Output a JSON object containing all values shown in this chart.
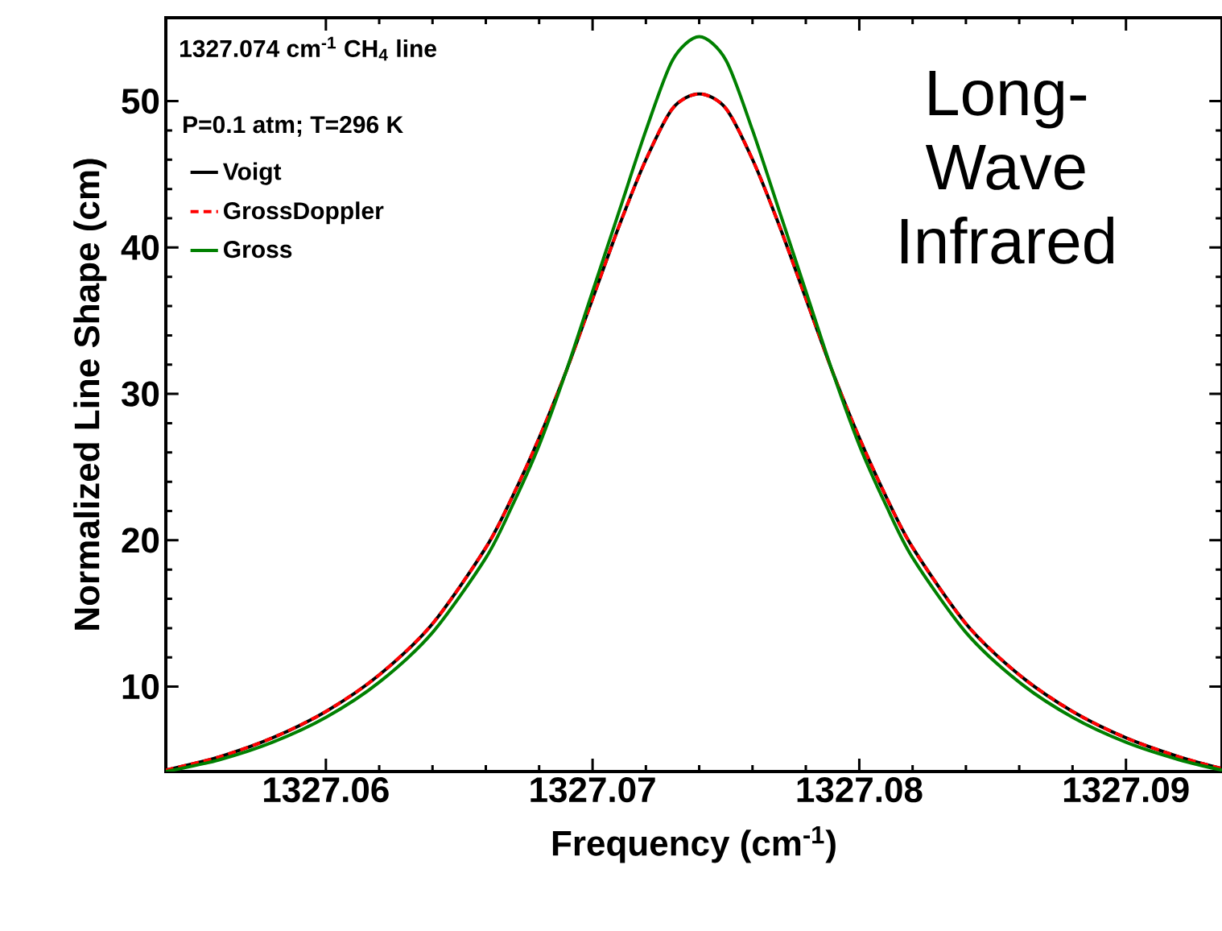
{
  "chart_data": {
    "type": "line",
    "xlabel": "Frequency (cm$^{-1}$)",
    "ylabel": "Normalized Line Shape (cm)",
    "annotations": [
      "1327.074 cm$^{-1}$ CH$_{4}$ line",
      "P=0.1 atm; T=296 K",
      "Long-Wave Infrared"
    ],
    "x": [
      1327.054,
      1327.056,
      1327.058,
      1327.06,
      1327.062,
      1327.064,
      1327.066,
      1327.067,
      1327.068,
      1327.069,
      1327.07,
      1327.071,
      1327.072,
      1327.073,
      1327.074,
      1327.075,
      1327.076,
      1327.077,
      1327.078,
      1327.079,
      1327.08,
      1327.081,
      1327.082,
      1327.084,
      1327.086,
      1327.088,
      1327.09,
      1327.092,
      1327.0936
    ],
    "series": [
      {
        "name": "Voigt",
        "color": "#000000",
        "line_style": "solid",
        "values": [
          4.3,
          5.2,
          6.5,
          8.3,
          10.8,
          14.3,
          19.5,
          23.0,
          27.0,
          31.5,
          36.5,
          41.5,
          46.0,
          49.5,
          50.5,
          49.5,
          46.0,
          41.5,
          36.5,
          31.5,
          27.0,
          23.0,
          19.5,
          14.3,
          10.8,
          8.3,
          6.5,
          5.2,
          4.4
        ]
      },
      {
        "name": "GrossDoppler",
        "color": "#ff0000",
        "line_style": "dashed",
        "values": [
          4.3,
          5.2,
          6.5,
          8.3,
          10.8,
          14.3,
          19.5,
          23.0,
          27.0,
          31.5,
          36.5,
          41.5,
          46.0,
          49.5,
          50.5,
          49.5,
          46.0,
          41.5,
          36.5,
          31.5,
          27.0,
          23.0,
          19.5,
          14.3,
          10.8,
          8.3,
          6.5,
          5.2,
          4.4
        ]
      },
      {
        "name": "Gross",
        "color": "#008000",
        "line_style": "solid",
        "values": [
          4.2,
          5.0,
          6.2,
          7.9,
          10.3,
          13.7,
          18.8,
          22.4,
          26.5,
          31.5,
          37.0,
          42.5,
          48.0,
          52.8,
          54.4,
          52.8,
          48.0,
          42.5,
          37.0,
          31.5,
          26.5,
          22.4,
          18.8,
          13.7,
          10.3,
          7.9,
          6.2,
          5.0,
          4.3
        ]
      }
    ],
    "xlim": [
      1327.054,
      1327.0936
    ],
    "ylim": [
      4.2,
      55.7
    ],
    "xticks": [
      1327.06,
      1327.07,
      1327.08,
      1327.09
    ],
    "yticks": [
      10,
      20,
      30,
      40,
      50
    ],
    "grid": false,
    "legend": "top left",
    "marker": "none"
  }
}
